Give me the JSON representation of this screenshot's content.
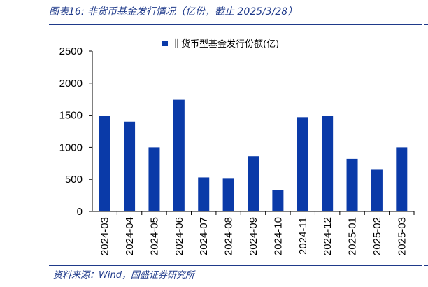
{
  "header": {
    "title": "图表16:  非货币基金发行情况（亿份，截止 2025/3/28）"
  },
  "footer": {
    "source": "资料来源：Wind，国盛证券研究所"
  },
  "colors": {
    "bar": "#0a3aa8",
    "accent": "#1f3a8a"
  },
  "chart_data": {
    "type": "bar",
    "title": "",
    "xlabel": "",
    "ylabel": "",
    "categories": [
      "2024-03",
      "2024-04",
      "2024-05",
      "2024-06",
      "2024-07",
      "2024-08",
      "2024-09",
      "2024-10",
      "2024-11",
      "2024-12",
      "2025-01",
      "2025-02",
      "2025-03"
    ],
    "series": [
      {
        "name": "非货币型基金发行份额(亿)",
        "values": [
          1490,
          1400,
          1000,
          1740,
          530,
          520,
          860,
          330,
          1470,
          1490,
          820,
          650,
          1000
        ]
      }
    ],
    "ylim": [
      0,
      2500
    ],
    "yticks": [
      0,
      500,
      1000,
      1500,
      2000,
      2500
    ],
    "legend": "top-center",
    "grid": false
  }
}
